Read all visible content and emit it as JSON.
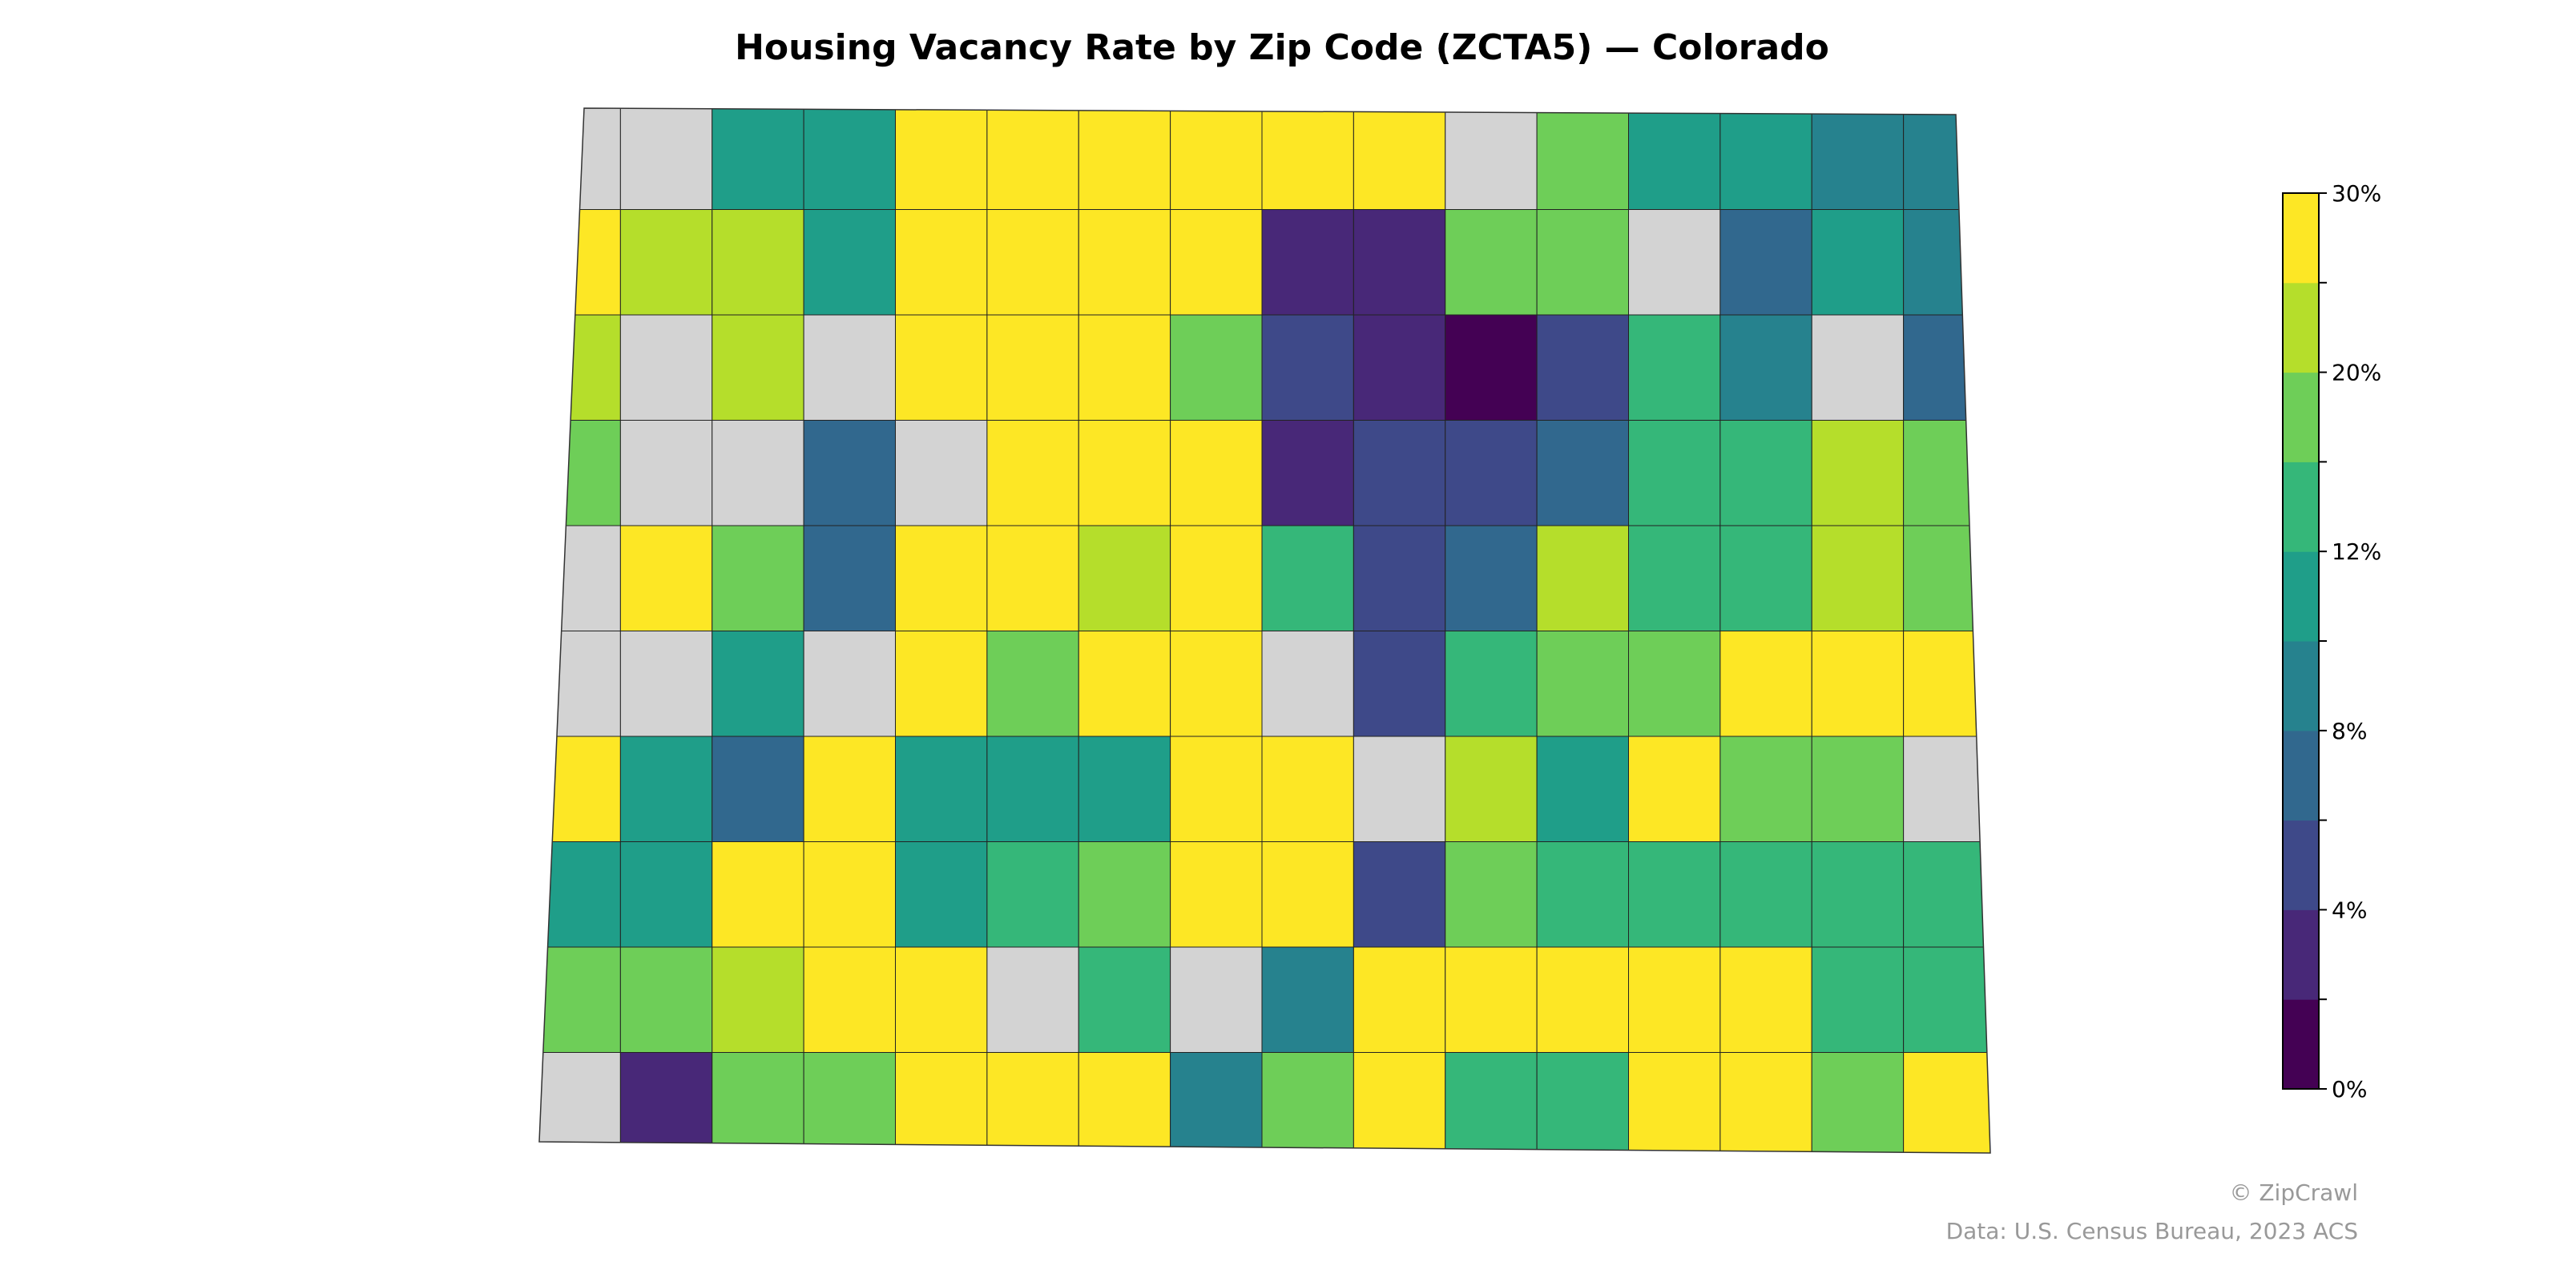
{
  "title": "Housing Vacancy Rate by Zip Code (ZCTA5) — Colorado",
  "footer": {
    "credit": "© ZipCrawl",
    "source": "Data: U.S. Census Bureau, 2023 ACS"
  },
  "colorbar": {
    "colormap": "viridis",
    "bins": 10,
    "colors": [
      "#440154",
      "#482878",
      "#3e4989",
      "#31688e",
      "#26828e",
      "#1f9e89",
      "#35b779",
      "#6ece58",
      "#b5de2b",
      "#fde725"
    ],
    "tick_labels": [
      "0%",
      "4%",
      "8%",
      "12%",
      "20%",
      "30%"
    ],
    "no_data_color": "#d3d3d3"
  },
  "map": {
    "region": "Colorado",
    "unit": "ZCTA5"
  }
}
